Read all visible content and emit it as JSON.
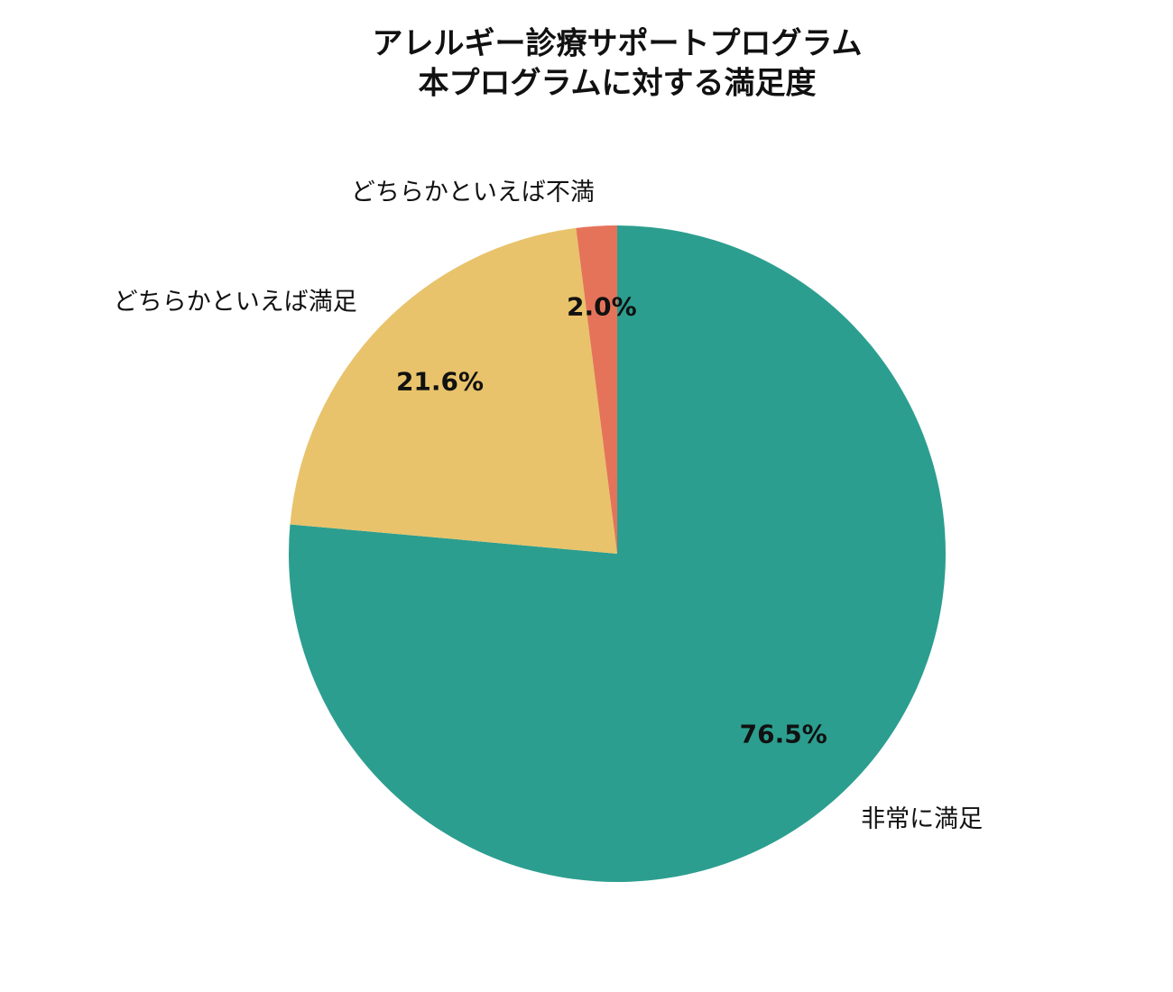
{
  "chart_data": {
    "type": "pie",
    "title": [
      "アレルギー診療サポートプログラム",
      "本プログラムに対する満足度"
    ],
    "categories": [
      "非常に満足",
      "どちらかといえば満足",
      "どちらかといえば不満"
    ],
    "values": [
      76.5,
      21.6,
      2.0
    ],
    "value_labels": [
      "76.5%",
      "21.6%",
      "2.0%"
    ],
    "colors": [
      "#2c9e8f",
      "#e8c36b",
      "#e5735a"
    ]
  }
}
